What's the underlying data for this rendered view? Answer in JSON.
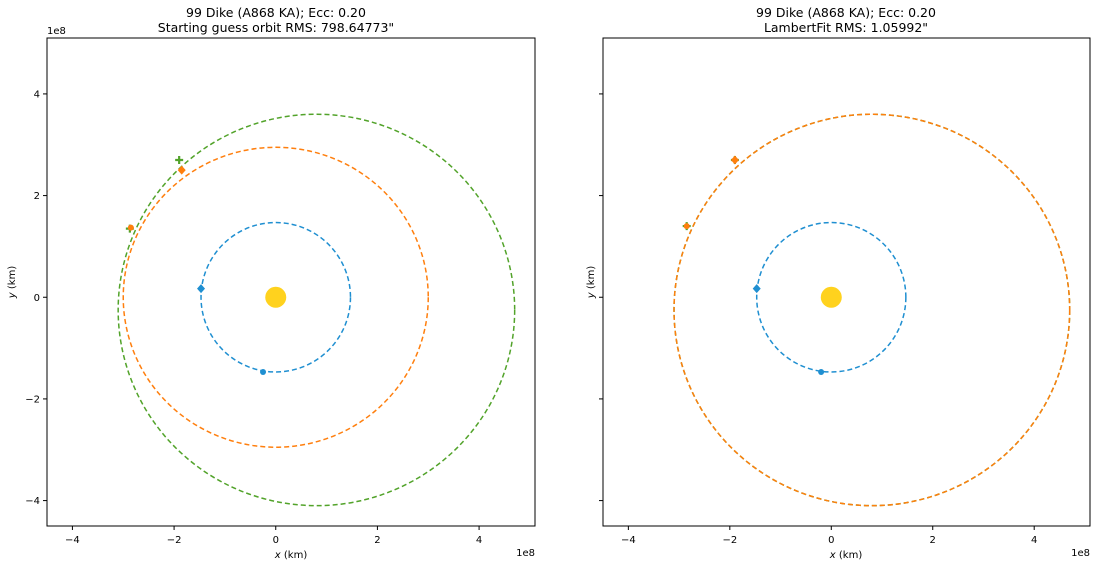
{
  "colors": {
    "earth": "#1f8fd1",
    "orbit_guess": "#ff7f0e",
    "orbit_true": "#52a32a",
    "sun": "#ffd21e"
  },
  "chart_data": [
    {
      "type": "scatter",
      "title_line1": "99 Dike (A868 KA); Ecc: 0.20",
      "title_line2": "Starting guess orbit RMS: 798.64773\"",
      "xlabel": "x (km)",
      "ylabel": "y (km)",
      "xlabel_var": "x",
      "ylabel_var": "y",
      "axis_unit": " (km)",
      "exponent_label": "1e8",
      "xlim": [
        -4.5,
        5.1
      ],
      "ylim": [
        -4.5,
        5.1
      ],
      "xticks": [
        -4,
        -2,
        0,
        2,
        4
      ],
      "yticks": [
        -4,
        -2,
        0,
        2,
        4
      ],
      "show_yticklabels": true,
      "grid": false,
      "series": [
        {
          "role": "earth_orbit",
          "color_key": "earth",
          "shape": "ellipse",
          "cx": 0.0,
          "cy": 0.0,
          "rx": 1.47,
          "ry": 1.47
        },
        {
          "role": "guess_orbit",
          "color_key": "orbit_guess",
          "shape": "ellipse",
          "cx": 0.0,
          "cy": 0.0,
          "rx": 3.0,
          "ry": 2.95
        },
        {
          "role": "true_orbit",
          "color_key": "orbit_true",
          "shape": "ellipse",
          "cx": 0.8,
          "cy": -0.25,
          "rx": 3.9,
          "ry": 3.85
        }
      ],
      "markers": [
        {
          "role": "sun",
          "color_key": "sun",
          "x": 0.0,
          "y": 0.0,
          "symbol": "big-circle"
        },
        {
          "role": "earth_obs_1",
          "color_key": "earth",
          "x": -1.47,
          "y": 0.17,
          "symbol": "diamond"
        },
        {
          "role": "earth_obs_2",
          "color_key": "earth",
          "x": -0.25,
          "y": -1.47,
          "symbol": "circle"
        },
        {
          "role": "true_obs_1",
          "color_key": "orbit_true",
          "x": -1.9,
          "y": 2.7,
          "symbol": "plus"
        },
        {
          "role": "true_obs_2",
          "color_key": "orbit_true",
          "x": -2.87,
          "y": 1.35,
          "symbol": "plus"
        },
        {
          "role": "guess_obs_1",
          "color_key": "orbit_guess",
          "x": -1.85,
          "y": 2.5,
          "symbol": "diamond"
        },
        {
          "role": "guess_obs_2",
          "color_key": "orbit_guess",
          "x": -2.85,
          "y": 1.37,
          "symbol": "circle"
        }
      ]
    },
    {
      "type": "scatter",
      "title_line1": "99 Dike (A868 KA); Ecc: 0.20",
      "title_line2": "LambertFit RMS: 1.05992\"",
      "xlabel": "x (km)",
      "ylabel": "y (km)",
      "xlabel_var": "x",
      "ylabel_var": "y",
      "axis_unit": " (km)",
      "exponent_label": "1e8",
      "xlim": [
        -4.5,
        5.1
      ],
      "ylim": [
        -4.5,
        5.1
      ],
      "xticks": [
        -4,
        -2,
        0,
        2,
        4
      ],
      "yticks": [
        -4,
        -2,
        0,
        2,
        4
      ],
      "show_yticklabels": false,
      "grid": false,
      "series": [
        {
          "role": "earth_orbit",
          "color_key": "earth",
          "shape": "ellipse",
          "cx": 0.0,
          "cy": 0.0,
          "rx": 1.47,
          "ry": 1.47
        },
        {
          "role": "true_orbit",
          "color_key": "orbit_true",
          "shape": "ellipse",
          "cx": 0.8,
          "cy": -0.25,
          "rx": 3.9,
          "ry": 3.85
        },
        {
          "role": "fit_orbit",
          "color_key": "orbit_guess",
          "shape": "ellipse",
          "cx": 0.8,
          "cy": -0.25,
          "rx": 3.9,
          "ry": 3.85
        }
      ],
      "markers": [
        {
          "role": "sun",
          "color_key": "sun",
          "x": 0.0,
          "y": 0.0,
          "symbol": "big-circle"
        },
        {
          "role": "earth_obs_1",
          "color_key": "earth",
          "x": -1.47,
          "y": 0.17,
          "symbol": "diamond"
        },
        {
          "role": "earth_obs_2",
          "color_key": "earth",
          "x": -0.2,
          "y": -1.47,
          "symbol": "circle"
        },
        {
          "role": "true_obs_1",
          "color_key": "orbit_true",
          "x": -1.9,
          "y": 2.7,
          "symbol": "plus"
        },
        {
          "role": "true_obs_2",
          "color_key": "orbit_true",
          "x": -2.85,
          "y": 1.4,
          "symbol": "plus"
        },
        {
          "role": "fit_obs_1",
          "color_key": "orbit_guess",
          "x": -1.9,
          "y": 2.7,
          "symbol": "diamond"
        },
        {
          "role": "fit_obs_2",
          "color_key": "orbit_guess",
          "x": -2.85,
          "y": 1.4,
          "symbol": "circle"
        }
      ]
    }
  ]
}
